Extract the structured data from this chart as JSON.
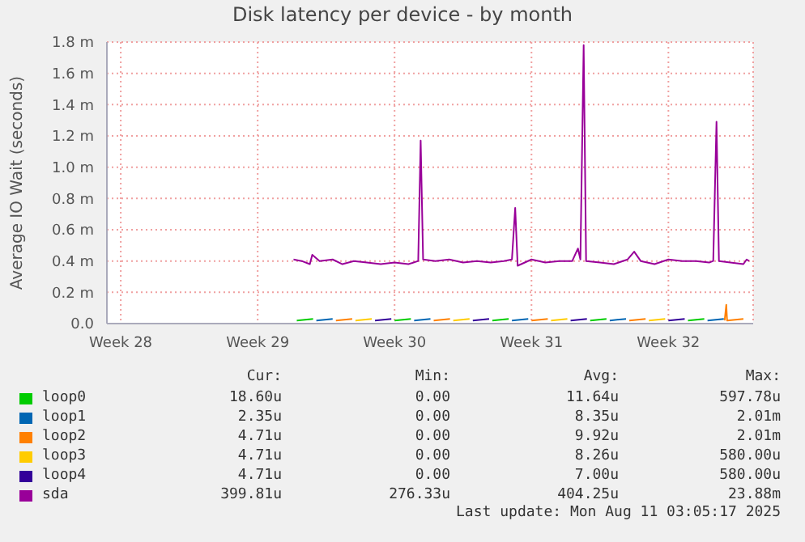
{
  "chart_data": {
    "type": "line",
    "title": "Disk latency per device - by month",
    "ylabel": "Average IO Wait (seconds)",
    "xlim": [
      "2025-07-09T07:00",
      "2025-08-11T08:00"
    ],
    "xticks": [
      {
        "value": "2025-07-10",
        "label": "Week 28"
      },
      {
        "value": "2025-07-17",
        "label": "Week 29"
      },
      {
        "value": "2025-07-24",
        "label": "Week 30"
      },
      {
        "value": "2025-07-31",
        "label": "Week 31"
      },
      {
        "value": "2025-08-07",
        "label": "Week 32"
      }
    ],
    "ylim": [
      0,
      1.8
    ],
    "yticks": [
      {
        "value": 0,
        "label": "0.0"
      },
      {
        "value": 0.2,
        "label": "0.2 m"
      },
      {
        "value": 0.4,
        "label": "0.4 m"
      },
      {
        "value": 0.6,
        "label": "0.6 m"
      },
      {
        "value": 0.8,
        "label": "0.8 m"
      },
      {
        "value": 1,
        "label": "1.0 m"
      },
      {
        "value": 1.2,
        "label": "1.2 m"
      },
      {
        "value": 1.4,
        "label": "1.4 m"
      },
      {
        "value": 1.6,
        "label": "1.6 m"
      },
      {
        "value": 1.8,
        "label": "1.8 m"
      }
    ],
    "grid": true,
    "legend": "bottom",
    "marker": "none",
    "line_style": "solid",
    "series": [
      {
        "name": "loop0",
        "color": "#00cc00",
        "x": [
          "2025-07-19T00:00",
          "2025-07-19T20:00",
          "2025-07-19T22:00",
          "2025-07-24T00:00",
          "2025-07-24T20:00",
          "2025-07-24T22:00",
          "2025-07-29T00:00",
          "2025-07-29T20:00",
          "2025-07-29T22:00",
          "2025-08-03T00:00",
          "2025-08-03T20:00",
          "2025-08-03T22:00",
          "2025-08-08T00:00",
          "2025-08-08T20:00"
        ],
        "values": [
          0.02,
          0.03,
          null,
          0.02,
          0.03,
          null,
          0.02,
          0.03,
          null,
          0.02,
          0.03,
          null,
          0.02,
          0.03
        ]
      },
      {
        "name": "loop1",
        "color": "#0066b3",
        "x": [
          "2025-07-20T00:00",
          "2025-07-20T20:00",
          "2025-07-20T22:00",
          "2025-07-25T00:00",
          "2025-07-25T20:00",
          "2025-07-25T22:00",
          "2025-07-30T00:00",
          "2025-07-30T20:00",
          "2025-07-30T22:00",
          "2025-08-04T00:00",
          "2025-08-04T20:00",
          "2025-08-04T22:00",
          "2025-08-09T00:00",
          "2025-08-09T20:00"
        ],
        "values": [
          0.02,
          0.03,
          null,
          0.02,
          0.03,
          null,
          0.02,
          0.03,
          null,
          0.02,
          0.03,
          null,
          0.02,
          0.03
        ]
      },
      {
        "name": "loop2",
        "color": "#ff8000",
        "x": [
          "2025-07-21T00:00",
          "2025-07-21T20:00",
          "2025-07-21T22:00",
          "2025-07-26T00:00",
          "2025-07-26T20:00",
          "2025-07-26T22:00",
          "2025-07-31T00:00",
          "2025-07-31T20:00",
          "2025-07-31T22:00",
          "2025-08-05T00:00",
          "2025-08-05T20:00",
          "2025-08-05T22:00",
          "2025-08-09T21:00",
          "2025-08-09T23:00",
          "2025-08-10T00:00",
          "2025-08-10T20:00"
        ],
        "values": [
          0.02,
          0.03,
          null,
          0.02,
          0.03,
          null,
          0.02,
          0.03,
          null,
          0.02,
          0.03,
          null,
          0.02,
          0.12,
          0.02,
          0.03
        ]
      },
      {
        "name": "loop3",
        "color": "#ffcc00",
        "x": [
          "2025-07-22T00:00",
          "2025-07-22T20:00",
          "2025-07-22T22:00",
          "2025-07-27T00:00",
          "2025-07-27T20:00",
          "2025-07-27T22:00",
          "2025-08-01T00:00",
          "2025-08-01T20:00",
          "2025-08-01T22:00",
          "2025-08-06T00:00",
          "2025-08-06T20:00"
        ],
        "values": [
          0.02,
          0.03,
          null,
          0.02,
          0.03,
          null,
          0.02,
          0.03,
          null,
          0.02,
          0.03
        ]
      },
      {
        "name": "loop4",
        "color": "#330099",
        "x": [
          "2025-07-23T00:00",
          "2025-07-23T20:00",
          "2025-07-23T22:00",
          "2025-07-28T00:00",
          "2025-07-28T20:00",
          "2025-07-28T22:00",
          "2025-08-02T00:00",
          "2025-08-02T20:00",
          "2025-08-02T22:00",
          "2025-08-07T00:00",
          "2025-08-07T20:00"
        ],
        "values": [
          0.02,
          0.03,
          null,
          0.02,
          0.03,
          null,
          0.02,
          0.03,
          null,
          0.02,
          0.03
        ]
      },
      {
        "name": "sda",
        "color": "#990099",
        "x": [
          "2025-07-18T20:00",
          "2025-07-19T06:00",
          "2025-07-19T16:00",
          "2025-07-19T19:00",
          "2025-07-20T04:00",
          "2025-07-20T20:00",
          "2025-07-21T08:00",
          "2025-07-21T22:00",
          "2025-07-22T14:00",
          "2025-07-23T07:00",
          "2025-07-24T00:00",
          "2025-07-24T17:00",
          "2025-07-25T05:00",
          "2025-07-25T08:00",
          "2025-07-25T11:00",
          "2025-07-26T02:00",
          "2025-07-26T19:00",
          "2025-07-27T12:00",
          "2025-07-28T05:00",
          "2025-07-28T22:00",
          "2025-07-29T14:00",
          "2025-07-30T00:00",
          "2025-07-30T04:00",
          "2025-07-30T07:00",
          "2025-07-31T00:00",
          "2025-07-31T17:00",
          "2025-08-01T10:00",
          "2025-08-02T02:00",
          "2025-08-02T09:00",
          "2025-08-02T12:00",
          "2025-08-02T16:00",
          "2025-08-02T19:00",
          "2025-08-03T12:00",
          "2025-08-04T05:00",
          "2025-08-04T22:00",
          "2025-08-05T06:00",
          "2025-08-05T14:00",
          "2025-08-06T07:00",
          "2025-08-07T00:00",
          "2025-08-07T17:00",
          "2025-08-08T10:00",
          "2025-08-09T02:00",
          "2025-08-09T07:00",
          "2025-08-09T11:00",
          "2025-08-09T14:00",
          "2025-08-10T04:00",
          "2025-08-10T20:00",
          "2025-08-11T00:00",
          "2025-08-11T03:00"
        ],
        "values": [
          0.41,
          0.4,
          0.38,
          0.44,
          0.4,
          0.41,
          0.38,
          0.4,
          0.39,
          0.38,
          0.39,
          0.38,
          0.4,
          1.17,
          0.41,
          0.4,
          0.41,
          0.39,
          0.4,
          0.39,
          0.4,
          0.41,
          0.74,
          0.37,
          0.41,
          0.39,
          0.4,
          0.4,
          0.48,
          0.41,
          1.78,
          0.4,
          0.39,
          0.38,
          0.41,
          0.46,
          0.4,
          0.38,
          0.41,
          0.4,
          0.4,
          0.39,
          0.4,
          1.29,
          0.4,
          0.39,
          0.38,
          0.41,
          0.4
        ]
      }
    ],
    "annotations": [
      "Cur:",
      "Min:",
      "Avg:",
      "Max:",
      "18.60u",
      "0.00",
      "11.64u",
      "597.78u",
      "2.35u",
      "0.00",
      "8.35u",
      "2.01m",
      "4.71u",
      "0.00",
      "9.92u",
      "2.01m",
      "4.71u",
      "0.00",
      "8.26u",
      "580.00u",
      "4.71u",
      "0.00",
      "7.00u",
      "580.00u",
      "399.81u",
      "276.33u",
      "404.25u",
      "23.88m",
      "Last update: Mon Aug 11 03:05:17 2025"
    ]
  }
}
